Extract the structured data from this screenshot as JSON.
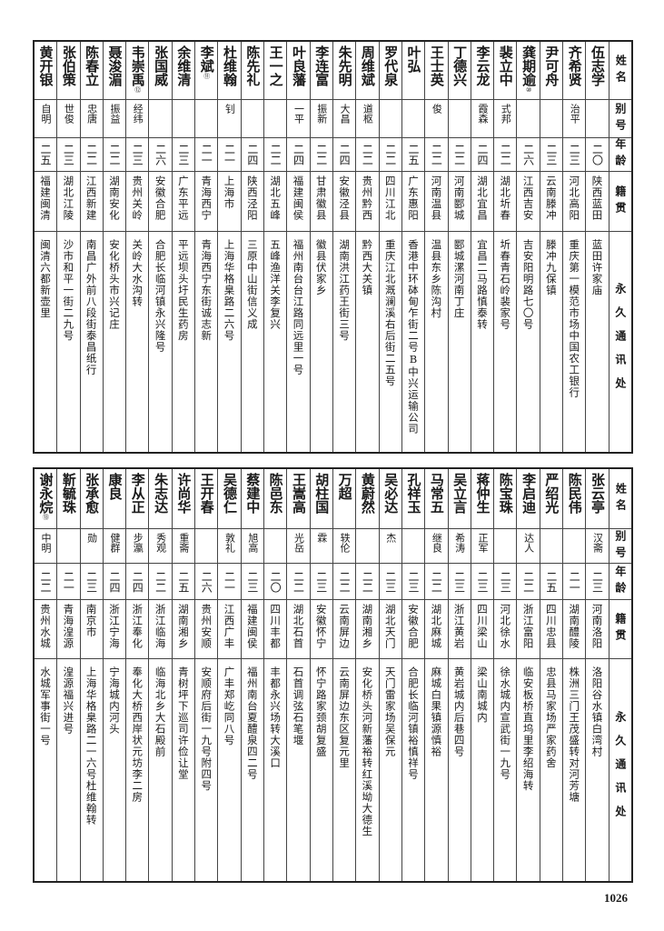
{
  "headers": {
    "name": "姓名",
    "alias": "别号",
    "age": "年龄",
    "origin": "籍贯",
    "address": "永久通讯处"
  },
  "top_rows": [
    {
      "name": "伍志学",
      "alias": "",
      "age": "二〇",
      "origin": "陕西蓝田",
      "address": "蓝田许家庙"
    },
    {
      "name": "齐希贤",
      "alias": "治平",
      "age": "二三",
      "origin": "河北高阳",
      "address": "重庆第一模范市场中国农工银行"
    },
    {
      "name": "尹可舟",
      "alias": "",
      "age": "二三",
      "origin": "云南滕冲",
      "address": "滕冲九保镇"
    },
    {
      "name": "龚期逾",
      "note": "⑩",
      "alias": "",
      "age": "二六",
      "origin": "江西吉安",
      "address": "吉安阳明路七〇号"
    },
    {
      "name": "裴立中",
      "alias": "式邦",
      "age": "二二",
      "origin": "湖北圻春",
      "address": "圻春青石岭裴家号"
    },
    {
      "name": "李云龙",
      "alias": "霞森",
      "age": "二四",
      "origin": "湖北宜昌",
      "address": "宜昌二马路慎泰转"
    },
    {
      "name": "丁德兴",
      "alias": "",
      "age": "二二",
      "origin": "河南郾城",
      "address": "郾城漯河南丁庄"
    },
    {
      "name": "王士英",
      "alias": "俊",
      "age": "二二",
      "origin": "河南温县",
      "address": "温县东乡陈沟村"
    },
    {
      "name": "叶弘",
      "alias": "",
      "age": "二五",
      "origin": "广东惠阳",
      "address": "香港中环砵甸乍街二号B中兴运输公司"
    },
    {
      "name": "罗代泉",
      "alias": "",
      "age": "二二",
      "origin": "四川江北",
      "address": "重庆江北溉澜溪右后街二五号"
    },
    {
      "name": "周维斌",
      "alias": "道枢",
      "age": "二二",
      "origin": "贵州黔西",
      "address": "黔西大关镇"
    },
    {
      "name": "朱先明",
      "alias": "大昌",
      "age": "二四",
      "origin": "安徽泾县",
      "address": "湖南洪江药王街三号"
    },
    {
      "name": "李连富",
      "alias": "振新",
      "age": "二二",
      "origin": "甘肃徽县",
      "address": "徽县伏家乡"
    },
    {
      "name": "叶良藩",
      "alias": "一平",
      "age": "二四",
      "origin": "福建闽侯",
      "address": "福州南台台江路同远里一号"
    },
    {
      "name": "王一之",
      "alias": "",
      "age": "二二",
      "origin": "湖北五峰",
      "address": "五峰渔洋关李复兴"
    },
    {
      "name": "陈先礼",
      "alias": "",
      "age": "二四",
      "origin": "陕西泾阳",
      "address": "三原中山街信义成"
    },
    {
      "name": "杜维翰",
      "alias": "钊",
      "age": "二一",
      "origin": "上海市",
      "address": "上海华格臬路二六号"
    },
    {
      "name": "李斌",
      "note": "⑪",
      "alias": "",
      "age": "二一",
      "origin": "青海西宁",
      "address": "青海西宁东街诚志新"
    },
    {
      "name": "余维清",
      "alias": "",
      "age": "二三",
      "origin": "广东平远",
      "address": "平远坝头圩民生药房"
    },
    {
      "name": "张国威",
      "alias": "",
      "age": "二六",
      "origin": "安徽合肥",
      "address": "合肥长临河镇永兴隆号"
    },
    {
      "name": "韦崇禹",
      "note": "⑫",
      "alias": "经纬",
      "age": "二三",
      "origin": "贵州关岭",
      "address": "关岭大水沟转"
    },
    {
      "name": "聂浚湄",
      "alias": "振益",
      "age": "二二",
      "origin": "湖南安化",
      "address": "安化桥头市兴记庄"
    },
    {
      "name": "陈春立",
      "alias": "忠唐",
      "age": "二二",
      "origin": "江西新建",
      "address": "南昌广外前八段街泰昌纸行"
    },
    {
      "name": "张伯策",
      "alias": "世俊",
      "age": "二三",
      "origin": "湖北江陵",
      "address": "沙市和平一街二九号"
    },
    {
      "name": "黄开银",
      "alias": "自明",
      "age": "二五",
      "origin": "福建闽清",
      "address": "闽清六都新壶里"
    }
  ],
  "bottom_rows": [
    {
      "name": "张云亭",
      "alias": "汉斋",
      "age": "二三",
      "origin": "河南洛阳",
      "address": "洛阳谷水镇白湾村"
    },
    {
      "name": "陈民伟",
      "alias": "",
      "age": "二一",
      "origin": "湖南醴陵",
      "address": "株洲三门王茂盛转对河芳塘"
    },
    {
      "name": "严绍光",
      "alias": "",
      "age": "二五",
      "origin": "四川忠县",
      "address": "忠县马家场严家药舍"
    },
    {
      "name": "李启迪",
      "alias": "达人",
      "age": "二二",
      "origin": "浙江富阳",
      "address": "临安板桥直坞里李绍海转"
    },
    {
      "name": "陈宝珠",
      "alias": "",
      "age": "二三",
      "origin": "河北徐水",
      "address": "徐水城内宣武街一九号"
    },
    {
      "name": "蒋仲生",
      "alias": "正军",
      "age": "二三",
      "origin": "四川梁山",
      "address": "梁山南城内"
    },
    {
      "name": "吴立言",
      "alias": "希涛",
      "age": "二三",
      "origin": "浙江黄岩",
      "address": "黄岩城内后巷四号"
    },
    {
      "name": "马常五",
      "alias": "继良",
      "age": "二二",
      "origin": "湖北麻城",
      "address": "麻城白果镇源慎裕"
    },
    {
      "name": "孔祥玉",
      "alias": "",
      "age": "二三",
      "origin": "安徽合肥",
      "address": "合肥长临河镇裕慎祥号"
    },
    {
      "name": "吴必达",
      "alias": "杰",
      "age": "二三",
      "origin": "湖北天门",
      "address": "天门雷家场吴保元"
    },
    {
      "name": "黄蔚然",
      "alias": "",
      "age": "二二",
      "origin": "湖南湘乡",
      "address": "安化桥头河新藩裕转红溪坳大德生"
    },
    {
      "name": "万超",
      "alias": "轶伦",
      "age": "二二",
      "origin": "云南屏边",
      "address": "云南屏边东区复元里"
    },
    {
      "name": "胡柱国",
      "alias": "霖",
      "age": "二三",
      "origin": "安徽怀宁",
      "address": "怀宁路家颈胡复盛"
    },
    {
      "name": "王嵩高",
      "alias": "光岳",
      "age": "二二",
      "origin": "湖北石首",
      "address": "石首调弦石笔堰"
    },
    {
      "name": "陈邑东",
      "alias": "",
      "age": "二〇",
      "origin": "四川丰都",
      "address": "丰都永兴场转大溪口"
    },
    {
      "name": "蔡建中",
      "alias": "旭高",
      "age": "二三",
      "origin": "福建闽侯",
      "address": "福州南台夏醴泉四二号"
    },
    {
      "name": "吴德仁",
      "alias": "敦礼",
      "age": "二一",
      "origin": "江西广丰",
      "address": "广丰郑屹同八号"
    },
    {
      "name": "王开春",
      "alias": "",
      "age": "二六",
      "origin": "贵州安顺",
      "address": "安顺府后街一九号附四号"
    },
    {
      "name": "许尚华",
      "alias": "重斋",
      "age": "二五",
      "origin": "湖南湘乡",
      "address": "青树坪下巡司许俭让堂"
    },
    {
      "name": "朱志达",
      "alias": "秀观",
      "age": "二二",
      "origin": "浙江临海",
      "address": "临海北乡大石殿前"
    },
    {
      "name": "李从正",
      "alias": "步瀛",
      "age": "二四",
      "origin": "浙江奉化",
      "address": "奉化大桥西岸状元坊李二房"
    },
    {
      "name": "康良",
      "alias": "健群",
      "age": "二四",
      "origin": "浙江宁海",
      "address": "宁海城内河头"
    },
    {
      "name": "张承愈",
      "alias": "勋",
      "age": "二三",
      "origin": "南京市",
      "address": "上海华格臬路二一六号杜维翰转"
    },
    {
      "name": "靳毓珠",
      "alias": "",
      "age": "二一",
      "origin": "青海湟源",
      "address": "湟源福兴进号"
    },
    {
      "name": "谢永烷",
      "note": "⑬",
      "alias": "中明",
      "age": "二二",
      "origin": "贵州水城",
      "address": "水城军事街一号"
    }
  ],
  "page_number": "1026"
}
